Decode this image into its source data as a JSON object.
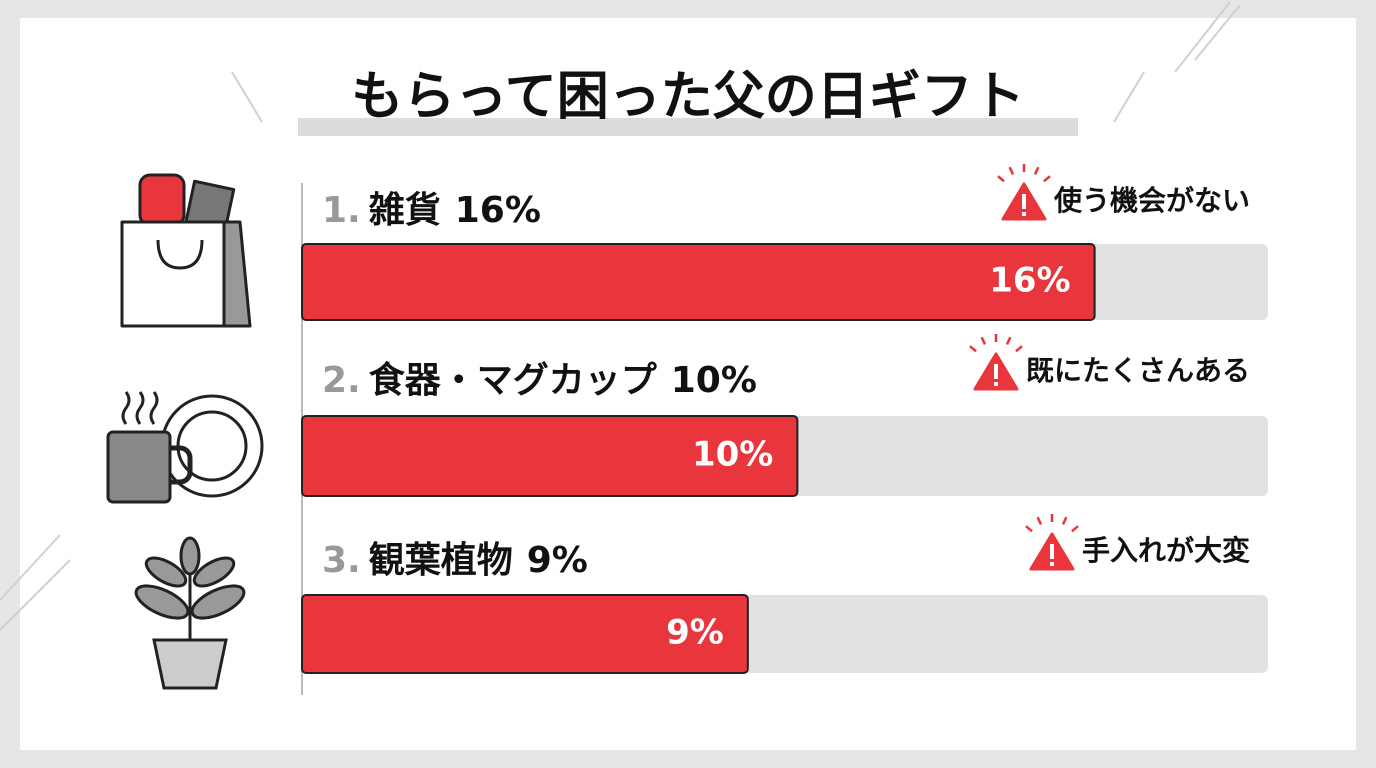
{
  "chart_data": {
    "type": "bar",
    "orientation": "horizontal",
    "title": "もらって困った父の日ギフト",
    "ranks": [
      "1.",
      "2.",
      "3."
    ],
    "categories": [
      "雑貨",
      "食器・マグカップ",
      "観葉植物"
    ],
    "values": [
      16,
      10,
      9
    ],
    "value_labels": [
      "16%",
      "10%",
      "9%"
    ],
    "notes": [
      "使う機会がない",
      "既にたくさんある",
      "手入れが大変"
    ],
    "color": "#e8363c",
    "xlim": [
      0,
      19.5
    ]
  }
}
